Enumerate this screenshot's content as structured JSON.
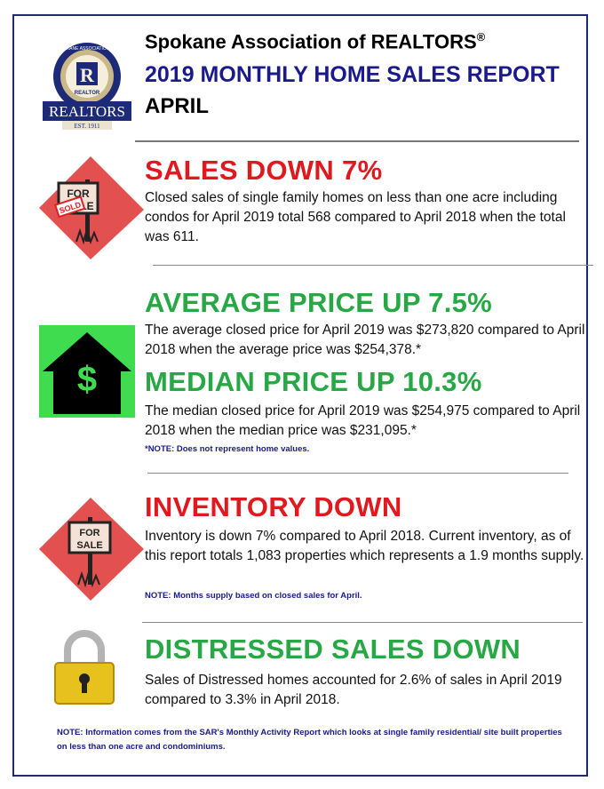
{
  "header": {
    "org_name": "Spokane Association of REALTORS",
    "registered_mark": "®",
    "report_title": "2019 MONTHLY HOME SALES REPORT",
    "month": "APRIL"
  },
  "logo": {
    "ring_text": "SPOKANE ASSOCIATION OF",
    "badge_text": "REALTOR",
    "banner_text": "REALTORS",
    "est_text": "EST. 1911"
  },
  "sections": {
    "sales": {
      "heading": "SALES DOWN 7%",
      "body": "Closed sales of single family homes on less than one acre including condos for April 2019 total 568 compared to April 2018 when the total was 611.",
      "icon_sign_top": "FOR",
      "icon_sign_bottom": "LE",
      "icon_sold": "SOLD"
    },
    "avg_price": {
      "heading": "AVERAGE PRICE UP 7.5%",
      "body": "The average closed price for April 2019 was $273,820 compared to April 2018 when the average price was $254,378.*",
      "icon_symbol": "$"
    },
    "median_price": {
      "heading": "MEDIAN PRICE UP 10.3%",
      "body": "The median closed price for April 2019 was $254,975 compared to April 2018 when the median price was $231,095.*",
      "note": "*NOTE:  Does not represent home values."
    },
    "inventory": {
      "heading": "INVENTORY DOWN",
      "body": "Inventory is down 7% compared to April 2018. Current inventory, as of this report totals 1,083 properties which represents a 1.9 months supply.",
      "note": "NOTE:  Months supply based on closed sales for April.",
      "icon_sign_top": "FOR",
      "icon_sign_bottom": "SALE"
    },
    "distressed": {
      "heading": "DISTRESSED SALES DOWN",
      "body": "Sales of Distressed homes accounted for 2.6% of sales in April 2019 compared to 3.3% in April 2018."
    }
  },
  "footer_note": "NOTE:  Information comes from the SAR's Monthly Activity Report which looks at single family residential/ site built properties on less than one acre and condominiums.",
  "colors": {
    "heading_red": "#e0191f",
    "heading_green": "#27a844",
    "title_blue": "#1a1a8c",
    "frame": "#1f2a6b"
  }
}
